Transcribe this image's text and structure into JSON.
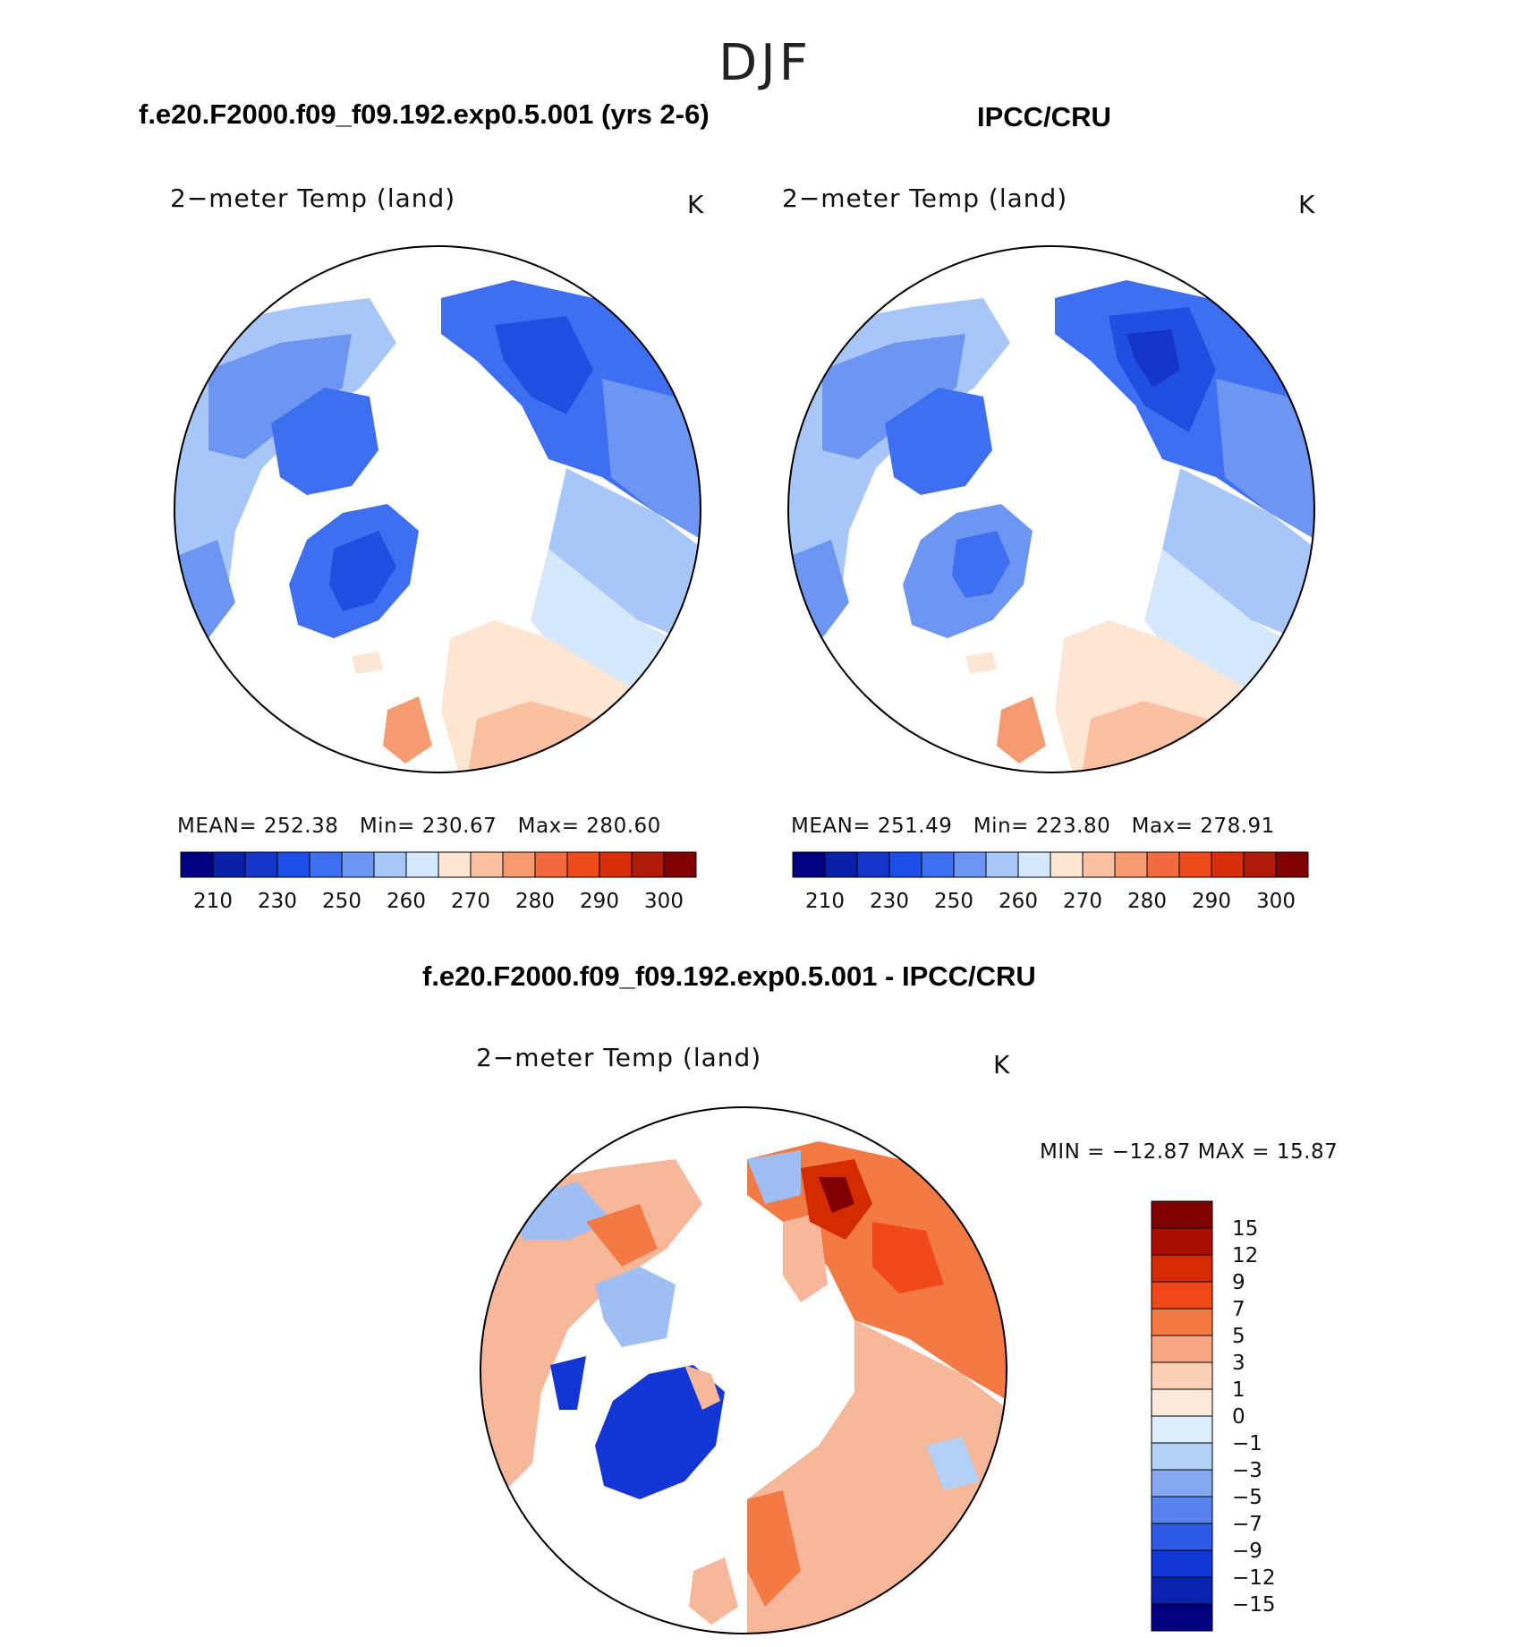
{
  "page_title": "DJF",
  "panels": [
    {
      "header": "f.e20.F2000.f09_f09.192.exp0.5.001 (yrs 2-6)",
      "variable": "2−meter Temp (land)",
      "units": "K",
      "stats": {
        "mean_label": "MEAN=",
        "mean": "252.38",
        "min_label": "Min=",
        "min": "230.67",
        "max_label": "Max=",
        "max": "280.60"
      }
    },
    {
      "header": "IPCC/CRU",
      "variable": "2−meter Temp (land)",
      "units": "K",
      "stats": {
        "mean_label": "MEAN=",
        "mean": "251.49",
        "min_label": "Min=",
        "min": "223.80",
        "max_label": "Max=",
        "max": "278.91"
      }
    }
  ],
  "abs_colorbar": {
    "colors": [
      "#000080",
      "#0a1fa8",
      "#1535c8",
      "#1e4ee8",
      "#3d6ff0",
      "#6d95f2",
      "#a9c6f8",
      "#d6e8fb",
      "#fde6d4",
      "#f9c0a2",
      "#f69a72",
      "#f26b40",
      "#ee4a1c",
      "#d92e0c",
      "#b01a08",
      "#7f0000"
    ],
    "ticks": [
      "210",
      "230",
      "250",
      "260",
      "270",
      "280",
      "290",
      "300"
    ]
  },
  "diff_panel": {
    "header": "f.e20.F2000.f09_f09.192.exp0.5.001 - IPCC/CRU",
    "variable": "2−meter Temp (land)",
    "units": "K",
    "minmax": "MIN  =  −12.87  MAX  =    15.87",
    "colorbar": {
      "colors": [
        "#7f0000",
        "#a80f00",
        "#d42a00",
        "#f04818",
        "#f47a45",
        "#f7a882",
        "#fbd0b8",
        "#fde8dc",
        "#dceefb",
        "#b3d0f6",
        "#86aaf2",
        "#5a82ee",
        "#2f5ae6",
        "#1238d6",
        "#0a22b0",
        "#000080"
      ],
      "ticks": [
        "15",
        "12",
        "9",
        "7",
        "5",
        "3",
        "1",
        "0",
        "−1",
        "−3",
        "−5",
        "−7",
        "−9",
        "−12",
        "−15"
      ]
    }
  },
  "map_colors": {
    "abs_dark": "#1f4fe0",
    "abs_mid": "#3d6ff0",
    "abs_light": "#a9c6f8",
    "abs_pale": "#d6e8fb",
    "abs_warm": "#f9c0a2",
    "abs_hot": "#f26b40",
    "diff_warm": "#f7b79a",
    "diff_hot": "#e8501e",
    "diff_cold": "#1235d6",
    "diff_cool": "#9fbef4"
  }
}
